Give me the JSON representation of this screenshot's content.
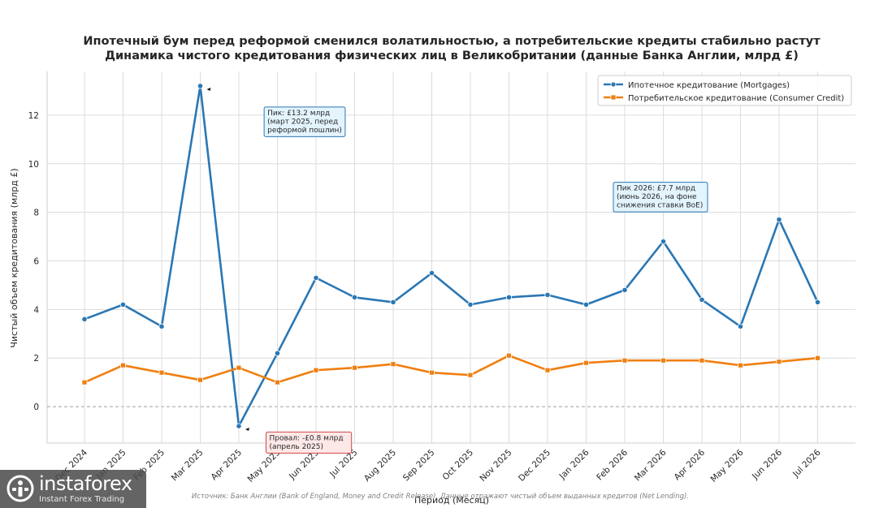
{
  "chart_data": {
    "type": "line",
    "title": "Ипотечный бум перед реформой сменился волатильностью, а потребительские кредиты стабильно растут",
    "subtitle": "Динамика чистого кредитования физических лиц в Великобритании (данные Банка Англии, млрд £)",
    "xlabel": "Период (Месяц)",
    "ylabel": "Чистый объем кредитования (млрд £)",
    "categories": [
      "Dec 2024",
      "Jan 2025",
      "Feb 2025",
      "Mar 2025",
      "Apr 2025",
      "May 2025",
      "Jun 2025",
      "Jul 2025",
      "Aug 2025",
      "Sep 2025",
      "Oct 2025",
      "Nov 2025",
      "Dec 2025",
      "Jan 2026",
      "Feb 2026",
      "Mar 2026",
      "Apr 2026",
      "May 2026",
      "Jun 2026",
      "Jul 2026"
    ],
    "ylim": [
      -1.5,
      13.8
    ],
    "yticks": [
      0,
      2,
      4,
      6,
      8,
      10,
      12
    ],
    "grid": true,
    "legend_position": "top-right",
    "series": [
      {
        "name": "Ипотечное кредитование (Mortgages)",
        "color": "#2a77b4",
        "marker": "circle",
        "values": [
          3.6,
          4.2,
          3.3,
          13.2,
          -0.8,
          2.2,
          5.3,
          4.5,
          4.3,
          5.5,
          4.2,
          4.5,
          4.6,
          4.2,
          4.8,
          6.8,
          4.4,
          3.3,
          7.7,
          4.3
        ]
      },
      {
        "name": "Потребительское кредитование (Consumer Credit)",
        "color": "#f07f10",
        "marker": "square",
        "values": [
          1.0,
          1.7,
          1.4,
          1.1,
          1.6,
          1.0,
          1.5,
          1.6,
          1.75,
          1.4,
          1.3,
          2.1,
          1.5,
          1.8,
          1.9,
          1.9,
          1.9,
          1.7,
          1.85,
          2.0
        ]
      }
    ],
    "annotations": [
      {
        "lines": [
          "Пик: £13.2 млрд",
          "(март 2025, перед",
          "реформой пошлин)"
        ],
        "point_index": 3,
        "series": 0,
        "text_at": [
          4.95,
          12.0
        ],
        "box_fill": "#e3f4fd",
        "box_stroke": "#2a77b4"
      },
      {
        "lines": [
          "Провал: -£0.8 млрд",
          "(апрель 2025)"
        ],
        "point_index": 4,
        "series": 0,
        "text_at": [
          5.0,
          -1.38
        ],
        "box_fill": "#fde8e8",
        "box_stroke": "#d24545"
      },
      {
        "lines": [
          "Пик 2026: £7.7 млрд",
          "(июнь 2026, на фоне",
          "снижения ставки BoE)"
        ],
        "point_index": 18,
        "series": 0,
        "text_at": [
          14.0,
          8.9
        ],
        "box_fill": "#e3f4fd",
        "box_stroke": "#2a77b4"
      }
    ],
    "footnote": "Источник: Банк Англии (Bank of England, Money and Credit Release). Данные отражают чистый объем выданных кредитов (Net Lending)."
  },
  "watermark": {
    "name": "instaforex",
    "tagline": "Instant Forex Trading"
  }
}
